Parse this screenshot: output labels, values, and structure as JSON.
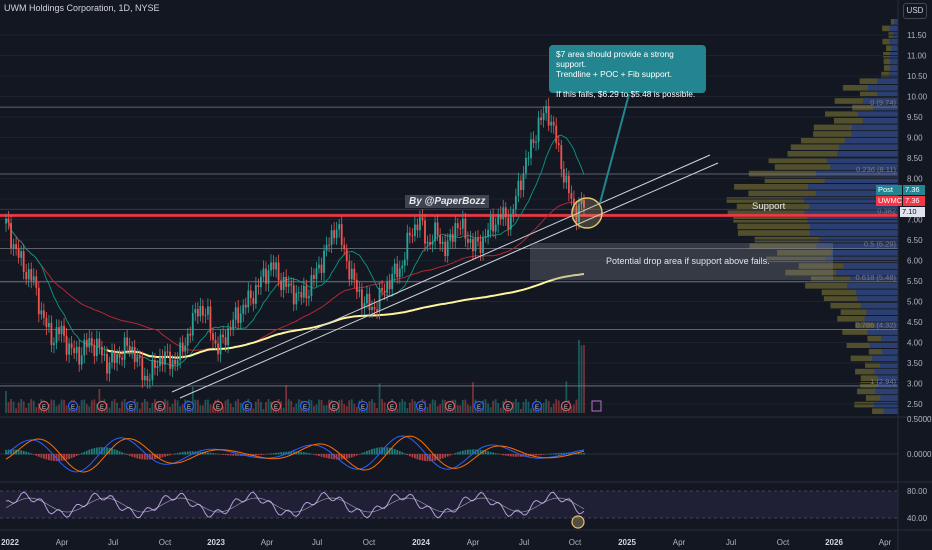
{
  "header": {
    "title": "UWM Holdings Corporation, 1D, NYSE",
    "currency_button": "USD"
  },
  "annotations": {
    "watermark": "By @PaperBozz",
    "callout_line1": "$7 area should provide a strong support.",
    "callout_line2": "Trendline + POC + Fib support.",
    "callout_line3": "If this fails, $6.29 to $5.48 is possible.",
    "support_label": "Support",
    "drop_label": "Potential drop area if support above fails."
  },
  "price_tags": {
    "post_label": "Post",
    "post_value": "7.36",
    "symbol_label": "UWMC",
    "symbol_value": "7.36",
    "support_value": "7.10"
  },
  "colors": {
    "background": "#131722",
    "candle_up": "#26a69a",
    "candle_down": "#ef5350",
    "support_line": "#f23645",
    "vwap": "#fff59d",
    "callout": "#22858f",
    "volume_profile_up": "#5e5a2e",
    "volume_profile_down": "#1f3a8a"
  },
  "chart_data": [
    {
      "type": "candlestick",
      "x_ticks": [
        "2022",
        "Apr",
        "Jul",
        "Oct",
        "2023",
        "Apr",
        "Jul",
        "Oct",
        "2024",
        "Apr",
        "Jul",
        "Oct",
        "2025",
        "Apr",
        "Jul",
        "Oct",
        "2026",
        "Apr"
      ],
      "y_ticks": [
        "11.50",
        "11.00",
        "10.50",
        "10.00",
        "9.50",
        "9.00",
        "8.50",
        "8.00",
        "7.50",
        "7.00",
        "6.50",
        "6.00",
        "5.50",
        "5.00",
        "4.50",
        "4.00",
        "3.50",
        "3.00",
        "2.50"
      ],
      "ylim": [
        2.5,
        11.8
      ],
      "series_close": [
        6.9,
        6.3,
        5.8,
        5.5,
        4.6,
        4.1,
        4.3,
        3.8,
        3.7,
        4.0,
        3.9,
        3.5,
        3.6,
        3.9,
        3.8,
        3.1,
        3.3,
        3.7,
        3.5,
        3.7,
        4.3,
        4.9,
        4.6,
        3.8,
        4.2,
        4.6,
        4.9,
        5.2,
        5.6,
        5.9,
        5.5,
        5.3,
        5.1,
        5.3,
        5.8,
        6.3,
        6.9,
        6.1,
        5.4,
        5.0,
        4.8,
        5.2,
        5.6,
        5.8,
        6.6,
        7.0,
        6.4,
        6.7,
        6.2,
        6.9,
        6.7,
        6.3,
        6.5,
        6.9,
        7.1,
        7.0,
        7.9,
        8.6,
        9.3,
        9.7,
        8.9,
        7.9,
        7.2,
        7.36
      ],
      "fib_levels": [
        {
          "label": "0 (9.74)",
          "value": 9.74
        },
        {
          "label": "0.236 (8.11)",
          "value": 8.11
        },
        {
          "label": "0.382",
          "value": 7.1
        },
        {
          "label": "0.5 (6.29)",
          "value": 6.29
        },
        {
          "label": "0.618 (5.48)",
          "value": 5.48
        },
        {
          "label": "0.786 (4.32)",
          "value": 4.32
        },
        {
          "label": "1 (2.94)",
          "value": 2.94
        }
      ],
      "support_level": 7.1,
      "last_price": 7.36
    },
    {
      "type": "line",
      "name": "MACD",
      "y_ticks": [
        "0.5000",
        "0.0000"
      ]
    },
    {
      "type": "line",
      "name": "RSI",
      "y_ticks": [
        "80.00",
        "40.00"
      ]
    }
  ]
}
